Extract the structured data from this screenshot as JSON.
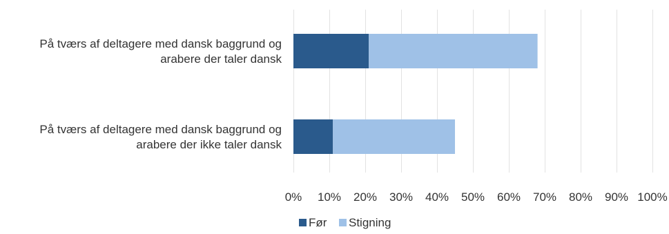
{
  "chart_data": {
    "type": "bar",
    "orientation": "horizontal",
    "stacked": true,
    "title": "",
    "xlabel": "",
    "ylabel": "",
    "xlim": [
      0,
      100
    ],
    "categories": [
      [
        "På tværs af deltagere med dansk baggrund og",
        "arabere der taler dansk"
      ],
      [
        "På tværs af deltagere med dansk baggrund og",
        "arabere der ikke taler dansk"
      ]
    ],
    "series": [
      {
        "name": "Før",
        "color": "#2a5a8c",
        "values": [
          21,
          11
        ]
      },
      {
        "name": "Stigning",
        "color": "#9fc1e7",
        "values": [
          47,
          34
        ]
      }
    ],
    "ticks": [
      "0%",
      "10%",
      "20%",
      "30%",
      "40%",
      "50%",
      "60%",
      "70%",
      "80%",
      "90%",
      "100%"
    ],
    "tick_values": [
      0,
      10,
      20,
      30,
      40,
      50,
      60,
      70,
      80,
      90,
      100
    ],
    "grid": true,
    "legend_position": "bottom"
  }
}
